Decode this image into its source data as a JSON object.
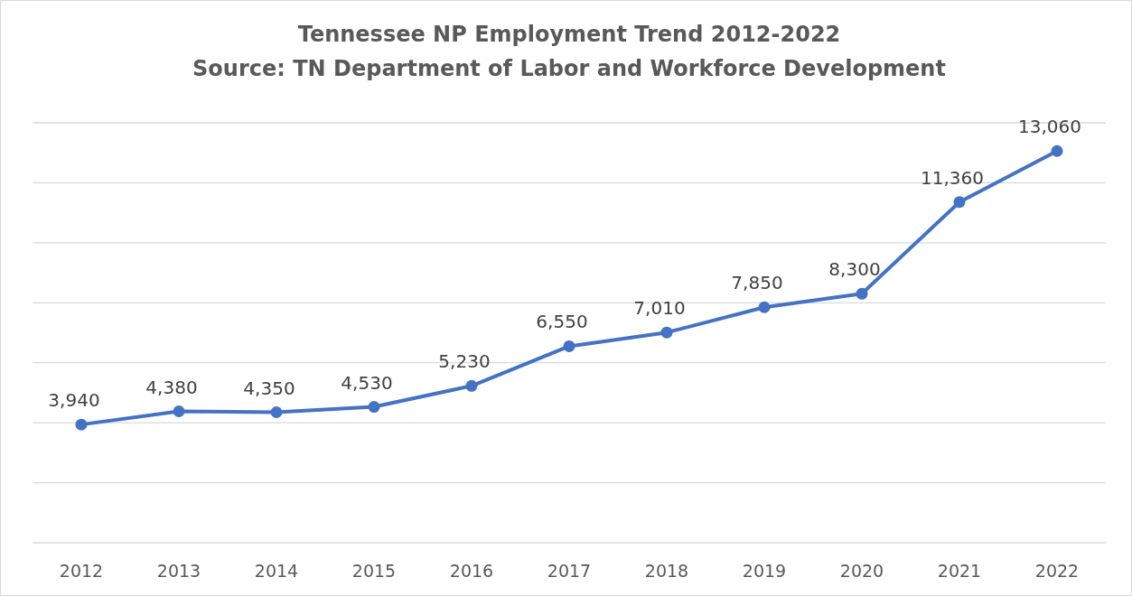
{
  "chart_data": {
    "type": "line",
    "title": "Tennessee NP Employment Trend 2012-2022",
    "subtitle": "Source: TN Department of Labor and Workforce Development",
    "categories": [
      "2012",
      "2013",
      "2014",
      "2015",
      "2016",
      "2017",
      "2018",
      "2019",
      "2020",
      "2021",
      "2022"
    ],
    "series": [
      {
        "color": "#4472c4",
        "values": [
          3940,
          4380,
          4350,
          4530,
          5230,
          6550,
          7010,
          7850,
          8300,
          11360,
          13060
        ],
        "value_labels": [
          "3,940",
          "4,380",
          "4,350",
          "4,530",
          "5,230",
          "6,550",
          "7,010",
          "7,850",
          "8,300",
          "11,360",
          "13,060"
        ]
      }
    ],
    "tick_labels": "x",
    "grid": "y",
    "marker": "circle",
    "line_style": "solid"
  }
}
